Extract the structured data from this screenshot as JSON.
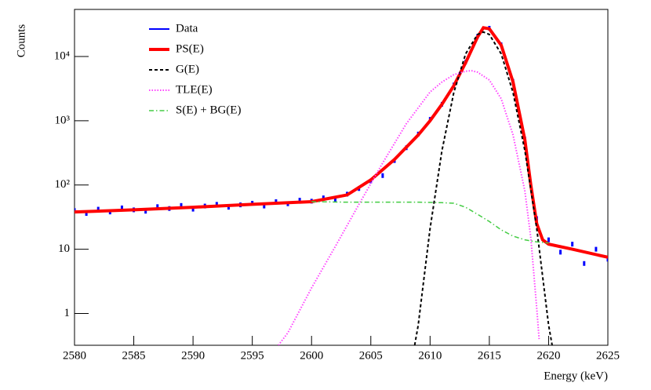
{
  "chart_data": {
    "type": "line",
    "y_label": "Counts",
    "x_label": "Energy (keV)",
    "log_y": true,
    "legend": "top-left",
    "xlim": [
      2580,
      2625
    ],
    "xticks": [
      2580,
      2585,
      2590,
      2595,
      2600,
      2605,
      2610,
      2615,
      2620,
      2625
    ],
    "ylim": [
      0.32,
      54000
    ],
    "yticks": [
      1,
      10,
      {
        "value": 100,
        "label": "10²"
      },
      {
        "value": 1000,
        "label": "10³"
      },
      {
        "value": 10000,
        "label": "10⁴"
      }
    ],
    "series": [
      {
        "name": "Data",
        "color": "#0000ff",
        "style": "points",
        "x": [
          2580,
          2581,
          2582,
          2583,
          2584,
          2585,
          2586,
          2587,
          2588,
          2589,
          2590,
          2591,
          2592,
          2593,
          2594,
          2595,
          2596,
          2597,
          2598,
          2599,
          2600,
          2601,
          2602,
          2603,
          2604,
          2605,
          2606,
          2607,
          2608,
          2609,
          2610,
          2611,
          2612,
          2613,
          2614,
          2615,
          2616,
          2617,
          2618,
          2619,
          2620,
          2621,
          2622,
          2623,
          2624,
          2625
        ],
        "values": [
          40,
          36,
          42,
          38,
          44,
          41,
          39,
          46,
          43,
          48,
          42,
          47,
          50,
          45,
          49,
          52,
          47,
          55,
          51,
          58,
          56,
          63,
          60,
          72,
          88,
          115,
          140,
          240,
          380,
          620,
          1050,
          1800,
          3600,
          8200,
          20500,
          27500,
          15200,
          4100,
          520,
          30,
          14,
          9,
          12,
          6,
          10,
          7
        ]
      },
      {
        "name": "PS(E)",
        "color": "#ff0000",
        "style": "solid",
        "x": [
          2580,
          2585,
          2590,
          2595,
          2600,
          2603,
          2605,
          2607,
          2609,
          2610,
          2611,
          2612,
          2613,
          2614,
          2614.5,
          2615,
          2616,
          2617,
          2618,
          2618.5,
          2619,
          2619.5,
          2620,
          2622,
          2625
        ],
        "values": [
          38,
          41,
          45,
          50,
          55,
          70,
          120,
          250,
          600,
          1000,
          1800,
          3500,
          8000,
          20000,
          28000,
          27000,
          15000,
          4000,
          500,
          100,
          25,
          14,
          12,
          10,
          7.5
        ]
      },
      {
        "name": "G(E)",
        "color": "#000000",
        "style": "dashed",
        "x": [
          2608.7,
          2609,
          2610,
          2611,
          2612,
          2613,
          2614,
          2614.5,
          2615,
          2616,
          2617,
          2618,
          2619,
          2620,
          2620.3
        ],
        "values": [
          0.32,
          0.66,
          21,
          341,
          2740,
          11000,
          22000,
          24000,
          22000,
          11000,
          2740,
          341,
          21,
          0.66,
          0.32
        ]
      },
      {
        "name": "TLE(E)",
        "color": "#ff44ff",
        "style": "dotted",
        "x": [
          2597.2,
          2598,
          2600,
          2602,
          2604,
          2606,
          2608,
          2610,
          2611,
          2612,
          2613,
          2613.5,
          2614,
          2615,
          2616,
          2617,
          2618,
          2618.5,
          2619,
          2619.2
        ],
        "values": [
          0.32,
          0.5,
          2.5,
          11,
          50,
          220,
          900,
          2800,
          4000,
          5200,
          5900,
          6000,
          5700,
          4300,
          2200,
          600,
          80,
          15,
          1.2,
          0.4
        ]
      },
      {
        "name": "S(E) + BG(E)",
        "color": "#44cc44",
        "style": "dashdot",
        "x": [
          2600,
          2603,
          2606,
          2609,
          2611,
          2612,
          2613,
          2614,
          2615,
          2616,
          2617,
          2618,
          2619,
          2620
        ],
        "values": [
          55,
          54,
          54,
          54,
          53,
          52,
          45,
          35,
          27,
          20,
          16,
          14,
          13,
          12.5
        ]
      }
    ]
  }
}
